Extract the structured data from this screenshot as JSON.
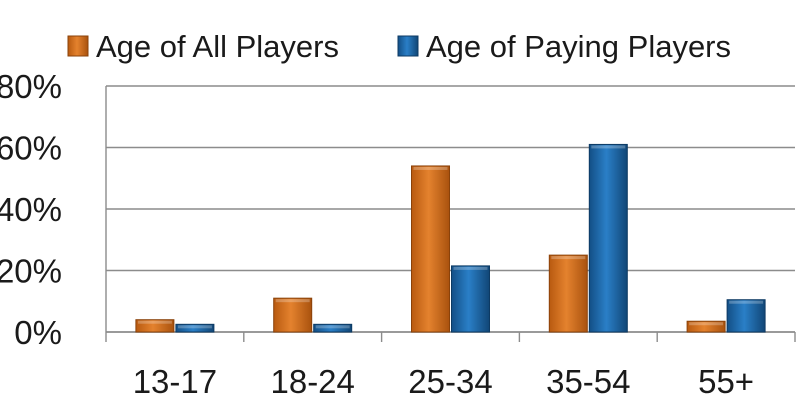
{
  "chart_data": {
    "type": "bar",
    "title": "",
    "xlabel": "",
    "ylabel": "",
    "categories": [
      "13-17",
      "18-24",
      "25-34",
      "35-54",
      "55+"
    ],
    "series": [
      {
        "name": "Age of All Players",
        "values": [
          4,
          11,
          54,
          25,
          3.5
        ],
        "color": "#d7731e"
      },
      {
        "name": "Age of Paying Players",
        "values": [
          2.5,
          2.5,
          21.5,
          61,
          10.5
        ],
        "color": "#1f6cb0"
      }
    ],
    "yticks": [
      "0%",
      "20%",
      "40%",
      "60%",
      "80%"
    ],
    "ylim": [
      0,
      80
    ],
    "grid": true,
    "legend": "top"
  }
}
